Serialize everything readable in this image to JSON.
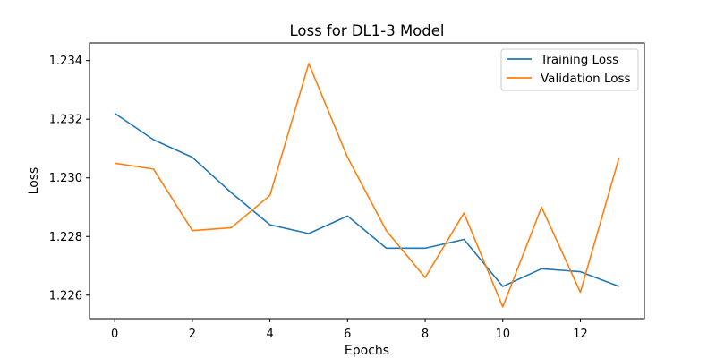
{
  "chart_data": {
    "type": "line",
    "title": "Loss for DL1-3 Model",
    "xlabel": "Epochs",
    "ylabel": "Loss",
    "x": [
      0,
      1,
      2,
      3,
      4,
      5,
      6,
      7,
      8,
      9,
      10,
      11,
      12,
      13
    ],
    "xlim": [
      -0.65,
      13.65
    ],
    "ylim": [
      1.2252,
      1.2346
    ],
    "xticks": [
      0,
      2,
      4,
      6,
      8,
      10,
      12
    ],
    "yticks": [
      1.226,
      1.228,
      1.23,
      1.232,
      1.234
    ],
    "xtick_labels": [
      "0",
      "2",
      "4",
      "6",
      "8",
      "10",
      "12"
    ],
    "ytick_labels": [
      "1.226",
      "1.228",
      "1.230",
      "1.232",
      "1.234"
    ],
    "grid": false,
    "legend_position": "top-right",
    "series": [
      {
        "name": "Training Loss",
        "color": "#1f77b4",
        "values": [
          1.2322,
          1.2313,
          1.2307,
          1.2295,
          1.2284,
          1.2281,
          1.2287,
          1.2276,
          1.2276,
          1.2279,
          1.2263,
          1.2269,
          1.2268,
          1.2263
        ]
      },
      {
        "name": "Validation Loss",
        "color": "#ff7f0e",
        "values": [
          1.2305,
          1.2303,
          1.2282,
          1.2283,
          1.2294,
          1.2339,
          1.2307,
          1.2282,
          1.2266,
          1.2288,
          1.2256,
          1.229,
          1.2261,
          1.2307
        ]
      }
    ]
  }
}
